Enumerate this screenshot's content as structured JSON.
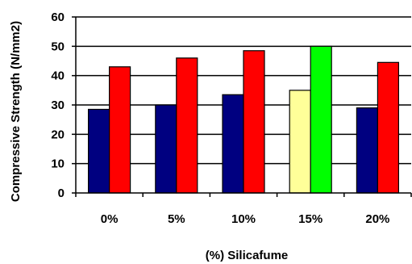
{
  "chart_data": {
    "type": "bar",
    "title": "",
    "xlabel": "(%) Silicafume",
    "ylabel": "Compressive Strength (N/mm2)",
    "ylim": [
      0,
      60
    ],
    "yticks": [
      0,
      10,
      20,
      30,
      40,
      50,
      60
    ],
    "grid": true,
    "legend": "none",
    "categories": [
      "0%",
      "5%",
      "10%",
      "15%",
      "20%"
    ],
    "series": [
      {
        "values": [
          28.5,
          30,
          33.5,
          35,
          29
        ],
        "colors": [
          "#000080",
          "#000080",
          "#000080",
          "#ffff99",
          "#000080"
        ]
      },
      {
        "values": [
          43,
          46,
          48.5,
          50,
          44.5
        ],
        "colors": [
          "#ff0000",
          "#ff0000",
          "#ff0000",
          "#00ff00",
          "#ff0000"
        ]
      }
    ]
  }
}
